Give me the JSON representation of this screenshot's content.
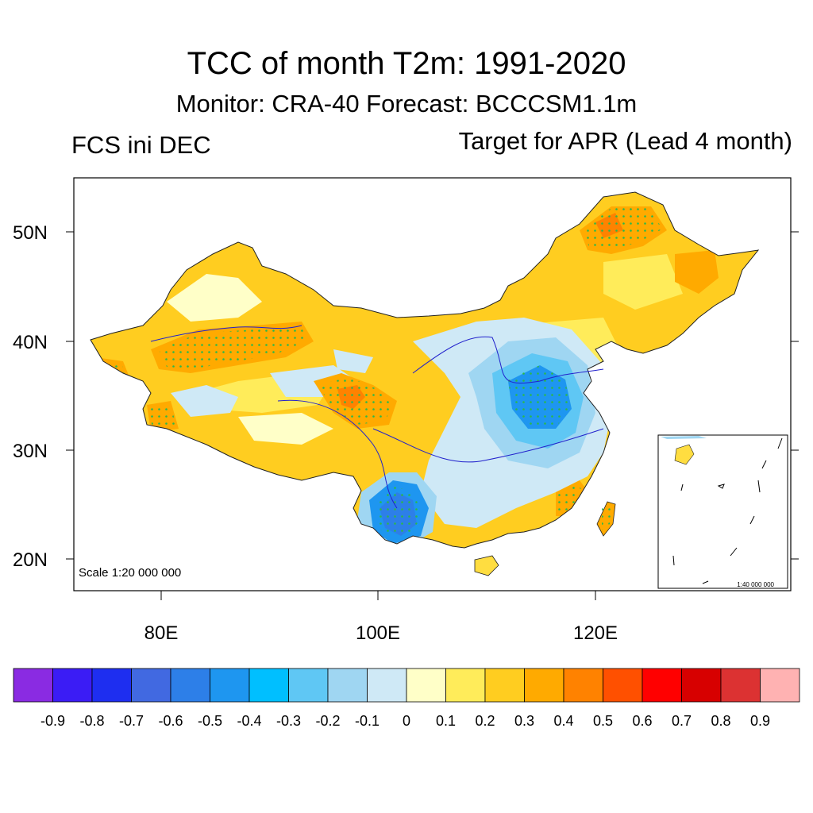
{
  "title": "TCC of month T2m: 1991-2020",
  "subtitle": "Monitor: CRA-40   Forecast: BCCCSM1.1m",
  "left_label": "FCS ini DEC",
  "right_label": "Target for APR (Lead 4 month)",
  "scale_main": "Scale 1:20 000 000",
  "scale_inset": "1:40 000 000",
  "lat_labels": [
    "50N",
    "40N",
    "30N",
    "20N"
  ],
  "lon_labels": [
    "80E",
    "100E",
    "120E"
  ],
  "colorbar": {
    "labels": [
      "-0.9",
      "-0.8",
      "-0.7",
      "-0.6",
      "-0.5",
      "-0.4",
      "-0.3",
      "-0.2",
      "-0.1",
      "0",
      "0.1",
      "0.2",
      "0.3",
      "0.4",
      "0.5",
      "0.6",
      "0.7",
      "0.8",
      "0.9"
    ],
    "colors": [
      "#8a2be2",
      "#3b1cf5",
      "#1e2ef0",
      "#4169e1",
      "#2d7fe8",
      "#1e96f0",
      "#00bfff",
      "#5fc7f4",
      "#9fd6f2",
      "#cfe9f6",
      "#ffffc8",
      "#ffec5a",
      "#ffcd20",
      "#ffaa00",
      "#ff8200",
      "#ff5000",
      "#ff0000",
      "#d70000",
      "#dc3232",
      "#ffb2b2"
    ]
  }
}
